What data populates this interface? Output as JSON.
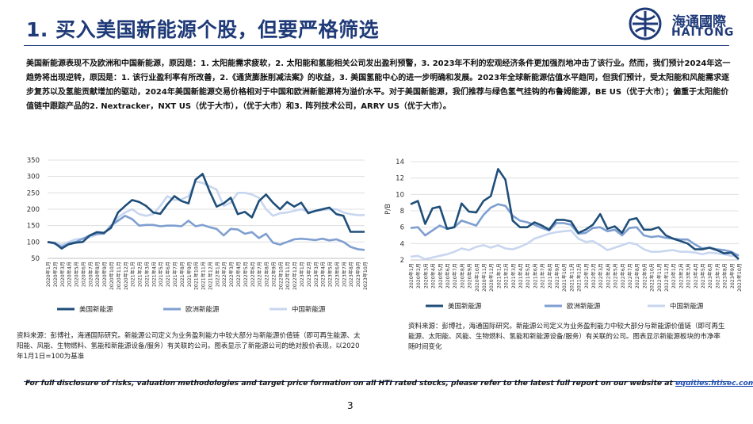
{
  "title": "1. 买入美国新能源个股，但要严格筛选",
  "logo": {
    "cn": "海通國際",
    "en": "HAITONG"
  },
  "intro": "美国新能源表现不及欧洲和中国新能源，原因是：1. 太阳能需求疲软，2. 太阳能和氢能相关公司发出盈利预警，3. 2023年不利的宏观经济条件更加强烈地冲击了该行业。然而，我们预计2024年这一趋势将出现逆转，原因是：1. 该行业盈利率有所改善，2.《通货膨胀削减法案》的收益，3. 美国氢能中心的进一步明确和发展。2023年全球新能源估值水平趋同，但我们预计，受太阳能和风能需求逐步复苏以及氢能贡献增加的驱动，2024年美国新能源交易价格相对于中国和欧洲新能源将为溢价水平。对于美国新能源，我们推荐与绿色氢气挂钩的布鲁姆能源，BE US（优于大市）；偏重于太阳能价值链中跟踪产品的2. Nextracker，NXT US（优于大市），（优于大市）和3. 阵列技术公司，ARRY US（优于大市）。",
  "colors": {
    "us": "#1f4e79",
    "eu": "#7f9fd0",
    "cn": "#c8d6ef",
    "grid": "#d9d9d9",
    "axis": "#bfbfbf",
    "brand": "#1f3a78"
  },
  "chart_data": [
    {
      "type": "line",
      "ylim": [
        50,
        350
      ],
      "yticks": [
        "50",
        "100",
        "150",
        "200",
        "250",
        "300",
        "350"
      ],
      "x": [
        "2020年1月",
        "2020年2月",
        "2020年3月",
        "2020年4月",
        "2020年5月",
        "2020年6月",
        "2020年7月",
        "2020年8月",
        "2020年9月",
        "2020年10月",
        "2020年11月",
        "2020年12月",
        "2021年1月",
        "2021年2月",
        "2021年3月",
        "2021年4月",
        "2021年5月",
        "2021年6月",
        "2021年7月",
        "2021年8月",
        "2021年9月",
        "2021年10月",
        "2021年11月",
        "2021年12月",
        "2022年1月",
        "2022年2月",
        "2022年3月",
        "2022年4月",
        "2022年5月",
        "2022年6月",
        "2022年7月",
        "2022年8月",
        "2022年9月",
        "2022年10月",
        "2022年11月",
        "2022年12月",
        "2023年1月",
        "2023年2月",
        "2023年3月",
        "2023年4月",
        "2023年5月",
        "2023年6月",
        "2023年7月",
        "2023年8月",
        "2023年9月",
        "2023年10月"
      ],
      "series": [
        {
          "name": "美国新能源",
          "values": [
            100,
            97,
            80,
            93,
            98,
            100,
            120,
            130,
            128,
            143,
            190,
            210,
            228,
            222,
            210,
            190,
            186,
            215,
            240,
            225,
            218,
            290,
            308,
            255,
            208,
            218,
            235,
            185,
            192,
            175,
            225,
            245,
            220,
            200,
            222,
            208,
            220,
            188,
            195,
            200,
            205,
            185,
            180,
            131,
            131,
            131
          ]
        },
        {
          "name": "欧洲新能源",
          "values": [
            100,
            95,
            85,
            95,
            100,
            110,
            120,
            125,
            125,
            150,
            165,
            180,
            170,
            150,
            152,
            152,
            148,
            150,
            150,
            148,
            165,
            148,
            152,
            145,
            140,
            120,
            140,
            138,
            125,
            130,
            112,
            125,
            98,
            92,
            100,
            108,
            110,
            108,
            106,
            110,
            105,
            108,
            100,
            85,
            78,
            76
          ]
        },
        {
          "name": "中国新能源",
          "values": [
            100,
            98,
            92,
            100,
            108,
            110,
            115,
            122,
            128,
            145,
            175,
            190,
            200,
            185,
            180,
            185,
            210,
            240,
            228,
            230,
            240,
            285,
            280,
            270,
            260,
            210,
            220,
            250,
            250,
            245,
            235,
            200,
            180,
            188,
            190,
            195,
            200,
            192,
            195,
            197,
            200,
            200,
            190,
            185,
            182,
            182
          ]
        }
      ],
      "legend_position": "bottom"
    },
    {
      "type": "line",
      "ylabel": "P/B",
      "ylim": [
        2,
        14
      ],
      "yticks": [
        "2",
        "4",
        "6",
        "8",
        "10",
        "12",
        "14"
      ],
      "x": [
        "2020年1月",
        "2020年2月",
        "2020年3月",
        "2020年4月",
        "2020年5月",
        "2020年6月",
        "2020年7月",
        "2020年8月",
        "2020年9月",
        "2020年10月",
        "2020年11月",
        "2020年12月",
        "2021年1月",
        "2021年2月",
        "2021年3月",
        "2021年4月",
        "2021年5月",
        "2021年6月",
        "2021年7月",
        "2021年8月",
        "2021年9月",
        "2021年10月",
        "2021年11月",
        "2021年12月",
        "2022年1月",
        "2022年2月",
        "2022年3月",
        "2022年4月",
        "2022年5月",
        "2022年6月",
        "2022年7月",
        "2022年8月",
        "2022年9月",
        "2022年10月",
        "2022年11月",
        "2022年12月",
        "2023年1月",
        "2023年2月",
        "2023年3月",
        "2023年4月",
        "2023年5月",
        "2023年6月",
        "2023年7月",
        "2023年8月",
        "2023年9月",
        "2023年10月"
      ],
      "series": [
        {
          "name": "美国新能源",
          "values": [
            8.8,
            9.2,
            6.4,
            8.3,
            8.5,
            5.8,
            6.0,
            8.9,
            7.9,
            7.8,
            9.2,
            9.8,
            13.1,
            11.8,
            6.8,
            6.0,
            6.0,
            6.6,
            6.2,
            5.7,
            6.9,
            6.9,
            6.7,
            5.3,
            5.7,
            6.3,
            7.6,
            5.8,
            6.1,
            5.3,
            6.9,
            7.1,
            5.7,
            5.7,
            6.0,
            5.0,
            4.6,
            4.3,
            4.0,
            3.3,
            3.3,
            3.5,
            3.2,
            2.8,
            2.9,
            2.1
          ]
        },
        {
          "name": "欧洲新能源",
          "values": [
            5.9,
            6.0,
            5.0,
            5.6,
            6.2,
            5.8,
            6.0,
            6.8,
            6.5,
            6.2,
            7.5,
            8.4,
            8.8,
            8.6,
            7.4,
            6.8,
            6.6,
            6.3,
            5.9,
            5.6,
            6.5,
            6.5,
            6.3,
            5.2,
            5.3,
            5.9,
            6.0,
            5.5,
            5.7,
            5.0,
            5.9,
            6.0,
            5.0,
            4.8,
            4.9,
            4.7,
            4.6,
            4.5,
            4.5,
            3.9,
            3.4,
            3.5,
            3.3,
            3.2,
            3.0,
            2.5
          ]
        },
        {
          "name": "中国新能源",
          "values": [
            2.4,
            2.5,
            2.1,
            2.3,
            2.5,
            2.7,
            3.0,
            3.4,
            3.2,
            3.6,
            3.8,
            3.5,
            3.8,
            3.4,
            3.3,
            3.6,
            4.0,
            4.6,
            4.9,
            5.2,
            5.4,
            5.5,
            5.6,
            4.6,
            4.2,
            4.3,
            3.8,
            3.2,
            3.5,
            3.8,
            4.1,
            3.9,
            3.3,
            3.0,
            3.0,
            3.1,
            3.2,
            3.0,
            3.0,
            2.9,
            2.7,
            2.9,
            2.8,
            2.7,
            2.5,
            2.6
          ]
        }
      ],
      "legend_position": "bottom"
    }
  ],
  "sources": {
    "left": "资料来源：彭博社，海通国际研究。新能源公司定义为业务盈利能力中较大部分与新能源价值链（即可再生能源、太阳能、风能、生物燃料、氢能和新能源设备/服务）有关联的公司。图表显示了新能源公司的绝对股价表现，以2020年1月1日=100为基准",
    "right": "资料来源：彭博社，海通国际研究。新能源公司定义为业务盈利能力中较大部分与新能源价值链（即可再生能源、太阳能、风能、生物燃料、氢能和新能源设备/服务）有关联的公司。图表显示新能源板块的市净率随时间变化"
  },
  "footer": {
    "disclaimer": "For full disclosure of risks, valuation methodologies and target price formation on all HTI rated stocks, please refer to the latest full report on our website at ",
    "link": "equities.htisec.com",
    "page": "3"
  }
}
